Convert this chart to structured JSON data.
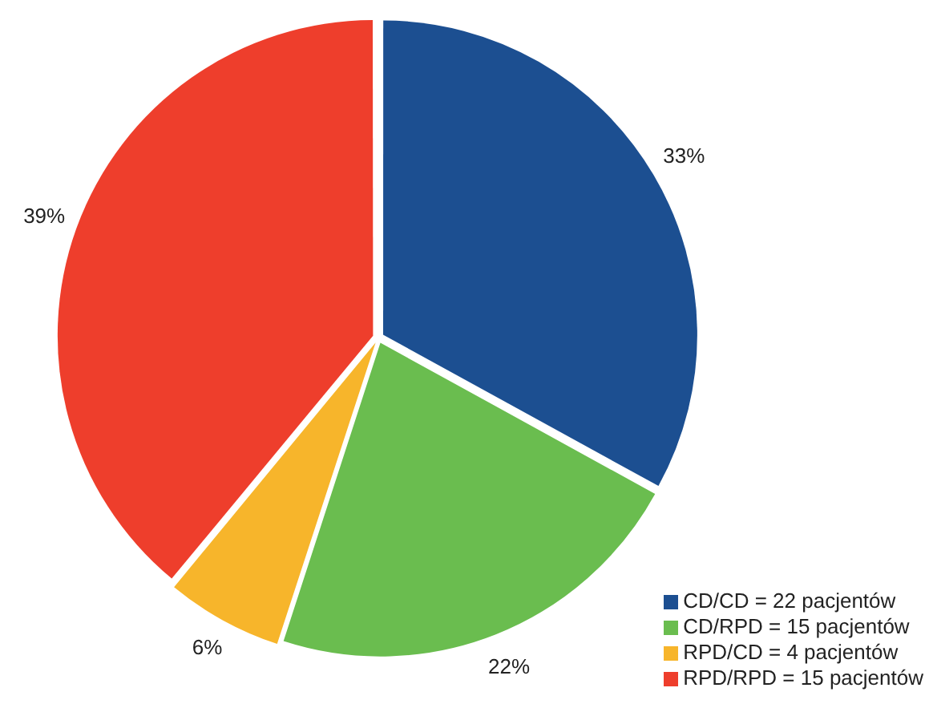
{
  "chart_data": {
    "type": "pie",
    "categories": [
      "CD/CD = 22 pacjentów",
      "CD/RPD = 15 pacjentów",
      "RPD/CD = 4 pacjentów",
      "RPD/RPD = 15 pacjentów"
    ],
    "values": [
      33,
      22,
      6,
      39
    ],
    "colors": [
      "#1c4f91",
      "#6abd4f",
      "#f7b52b",
      "#ee3e2c"
    ],
    "value_labels": [
      "33%",
      "22%",
      "6%",
      "39%"
    ],
    "legend": "bottom right"
  }
}
